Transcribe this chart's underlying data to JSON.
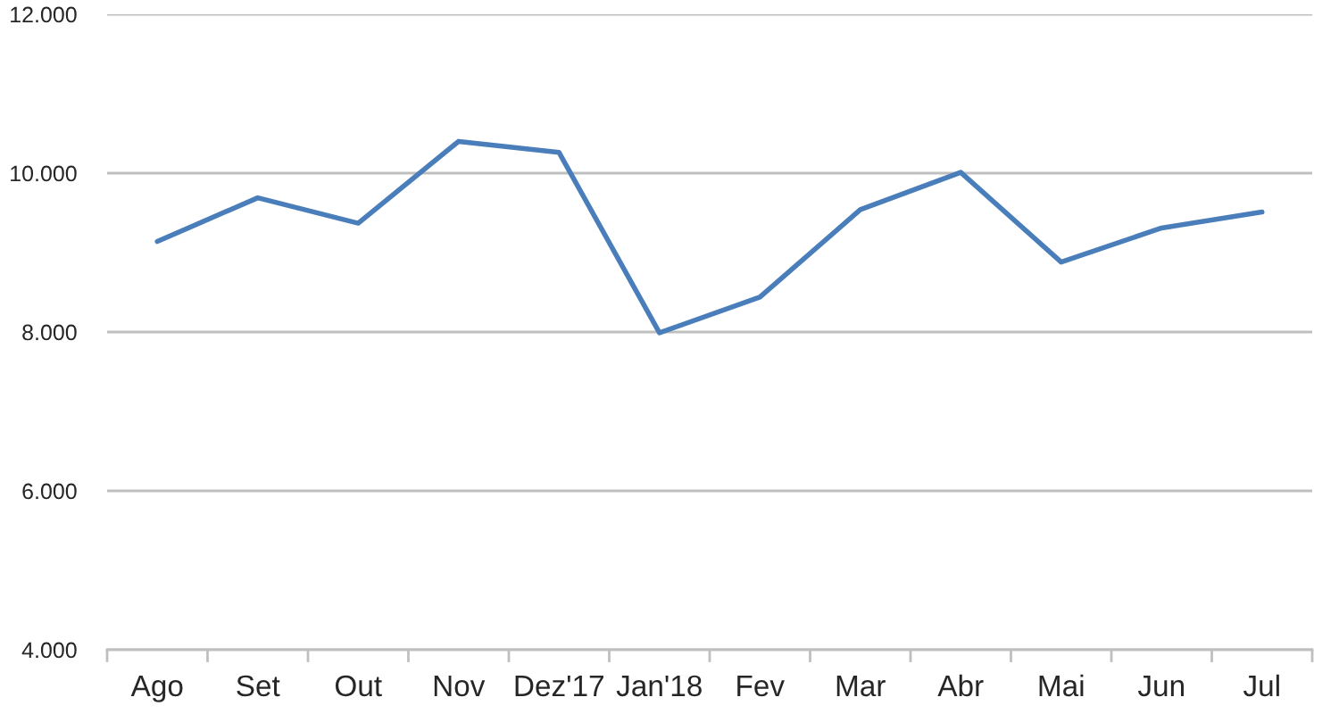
{
  "chart_data": {
    "type": "line",
    "categories": [
      "Ago",
      "Set",
      "Out",
      "Nov",
      "Dez'17",
      "Jan'18",
      "Fev",
      "Mar",
      "Abr",
      "Mai",
      "Jun",
      "Jul"
    ],
    "series": [
      {
        "color": "#4a7ebb",
        "values": [
          9140,
          9690,
          9370,
          10400,
          10260,
          7990,
          8440,
          9540,
          10010,
          8880,
          9310,
          9510
        ]
      }
    ],
    "ylim": [
      4000,
      12000
    ],
    "yticks": [
      {
        "value": 4000,
        "label": "4.000"
      },
      {
        "value": 6000,
        "label": "6.000"
      },
      {
        "value": 8000,
        "label": "8.000"
      },
      {
        "value": 10000,
        "label": "10.000"
      },
      {
        "value": 12000,
        "label": "12.000"
      }
    ],
    "grid": "y",
    "line_style": "solid"
  }
}
